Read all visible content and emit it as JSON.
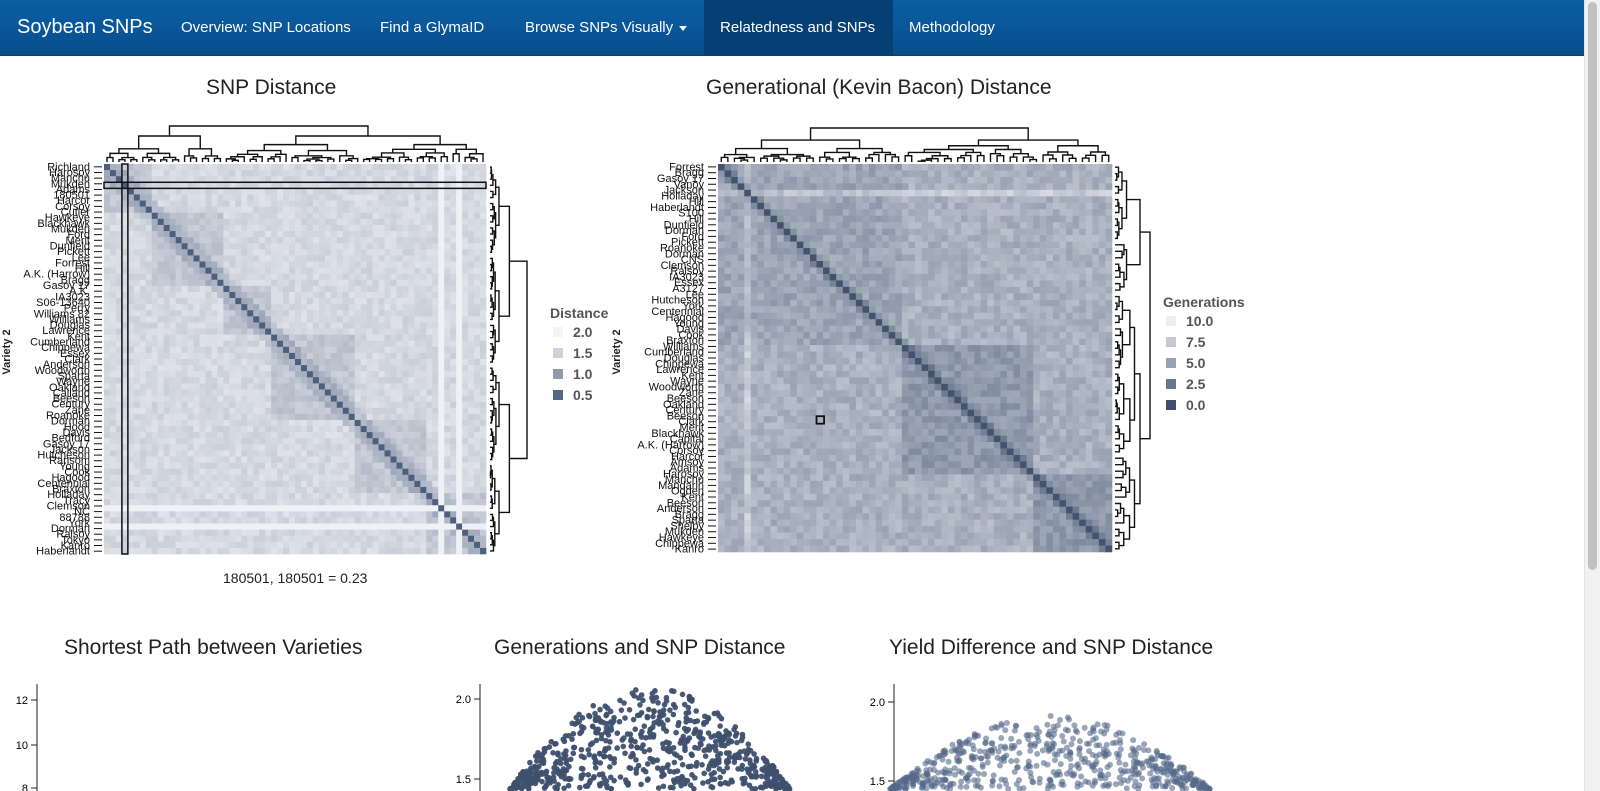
{
  "nav": {
    "brand": "Soybean SNPs",
    "items": [
      {
        "label": "Overview: SNP Locations",
        "active": false
      },
      {
        "label": "Find a GlymaID",
        "active": false
      },
      {
        "label": "Browse SNPs Visually",
        "active": false,
        "dropdown": true
      },
      {
        "label": "Relatedness and SNPs",
        "active": true
      },
      {
        "label": "Methodology",
        "active": false
      }
    ]
  },
  "snp_heatmap": {
    "title": "SNP Distance",
    "ylabel": "Variety 2",
    "row_labels": [
      "Richland",
      "Harosoy",
      "Manchu",
      "Mukden",
      "Adams",
      "180501",
      "Harcor",
      "Corsoy",
      "Cutler",
      "Hawkeye",
      "Blackhawk",
      "Mukden",
      "Ford",
      "Merit",
      "Dunfield",
      "Pickett",
      "Lee",
      "Forrest",
      "Hill",
      "A.K. (Harrow)",
      "Bragg",
      "Gasoy 17",
      "A.K.",
      "IA3023",
      "S06-13640",
      "Perry",
      "Williams 82",
      "Williams",
      "Douglas",
      "Lawrence",
      "Kent",
      "Cumberland",
      "Chippewa",
      "Essex",
      "Clark",
      "Anderson",
      "Woodworth",
      "Sparta",
      "Wayne",
      "Oakland",
      "Calland",
      "Beeson",
      "Century",
      "Zane",
      "Roanoke",
      "Dorman",
      "Hood",
      "Davis",
      "Bedford",
      "Gasoy 17",
      "Jackson",
      "Hutcheson",
      "Ransom",
      "Young",
      "Cook",
      "Hagood",
      "Centennial",
      "Braxton",
      "Holladay",
      "Tracy",
      "Clemson",
      "NC",
      "88788",
      "York",
      "Dorman",
      "Ralsoy",
      "Tokyo",
      "Kanro",
      "Haberlandt"
    ],
    "legend_title": "Distance",
    "legend": [
      "2.0",
      "1.5",
      "1.0",
      "0.5"
    ],
    "legend_colors": [
      "#f3f4f7",
      "#cdd2dc",
      "#8f9aae",
      "#556785"
    ],
    "readout": "180501, 180501 = 0.23"
  },
  "gen_heatmap": {
    "title": "Generational (Kevin Bacon) Distance",
    "ylabel": "Variety 2",
    "row_labels": [
      "Forrest",
      "Bragg",
      "Gasoy 17",
      "Vanoy",
      "Jackson",
      "Holladay",
      "Hill",
      "Haberlandt",
      "S100",
      "Hill",
      "Dunfield",
      "Dorman",
      "Ford",
      "Pickett",
      "Roanoke",
      "Dorman",
      "CNS",
      "Clemson",
      "Ralsoy",
      "IA3023",
      "Essex",
      "A3127",
      "Lee",
      "Hutcheson",
      "York",
      "Centennial",
      "Hagood",
      "Young",
      "Davis",
      "Cook",
      "Braxton",
      "Williams",
      "Cumberland",
      "Douglas",
      "Chippewa",
      "Lawrence",
      "Kent",
      "Wayne",
      "Woodworth",
      "Zane",
      "Beeson",
      "Oakland",
      "Century",
      "Beeson",
      "Clark",
      "Merit",
      "Blackhawk",
      "Capital",
      "A.K. (Harrow)",
      "Corsoy",
      "Harcor",
      "Amsoy",
      "Adams",
      "Harosoy",
      "Manchu",
      "Mandarin",
      "Ogden",
      "Kent",
      "Beeson",
      "Anderson",
      "Bragg",
      "Sparta",
      "Shelby",
      "Mukden",
      "Hawkeye",
      "Chippewa",
      "Kanro"
    ],
    "legend_title": "Generations",
    "legend": [
      "10.0",
      "7.5",
      "5.0",
      "2.5",
      "0.0"
    ],
    "legend_colors": [
      "#eceef3",
      "#c2c9d5",
      "#97a2b5",
      "#677892",
      "#3f4f69"
    ]
  },
  "bottom": {
    "shortest_path": {
      "title": "Shortest Path between Varieties",
      "yticks": [
        "12",
        "10",
        "8"
      ]
    },
    "gen_vs_snp": {
      "title": "Generations and SNP Distance",
      "yticks": [
        "2.0",
        "1.5"
      ]
    },
    "yield_vs_snp": {
      "title": "Yield Difference and SNP Distance",
      "yticks": [
        "2.0",
        "1.5"
      ]
    }
  },
  "colors": {
    "nav": "#084d8c",
    "accent": "#3f4f69"
  }
}
